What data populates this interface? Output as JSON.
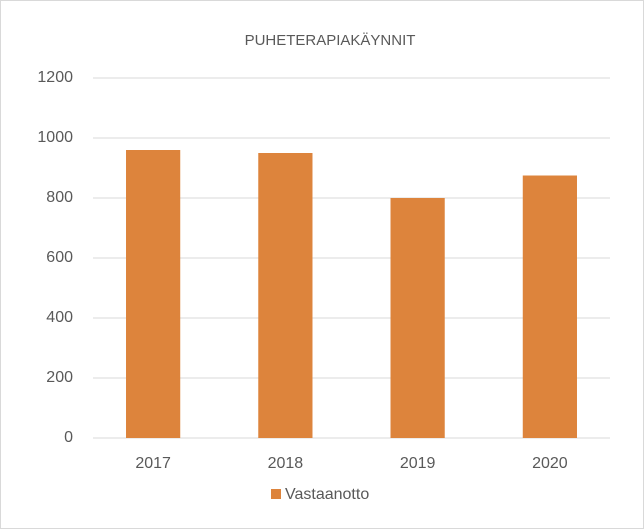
{
  "chart_data": {
    "type": "bar",
    "title": "PUHETERAPIAKÄYNNIT",
    "categories": [
      "2017",
      "2018",
      "2019",
      "2020"
    ],
    "series": [
      {
        "name": "Vastaanotto",
        "color": "#dd843c",
        "values": [
          960,
          950,
          800,
          875
        ]
      }
    ],
    "ylim": [
      0,
      1200
    ],
    "yticks": [
      0,
      200,
      400,
      600,
      800,
      1000,
      1200
    ],
    "grid": true,
    "legend": "bottom"
  }
}
